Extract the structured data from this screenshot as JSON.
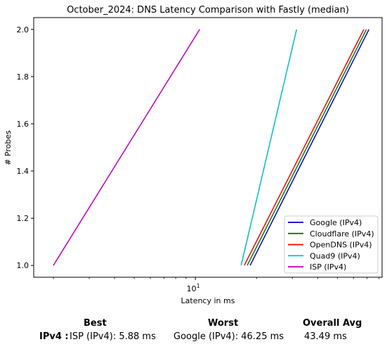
{
  "chart_data": {
    "type": "line",
    "title": "October_2024: DNS Latency Comparison with Fastly (median)",
    "xlabel": "Latency in ms",
    "ylabel": "# Probes",
    "xscale": "log",
    "xlim": [
      1.6,
      83
    ],
    "ylim": [
      0.95,
      2.05
    ],
    "x_tick_labels": [
      {
        "value": 10,
        "base": "10",
        "exp": "1"
      }
    ],
    "x_minor_ticks": [
      2,
      3,
      4,
      5,
      6,
      7,
      8,
      9,
      20,
      30,
      40,
      50,
      60,
      70,
      80
    ],
    "y_ticks": [
      1.0,
      1.2,
      1.4,
      1.6,
      1.8,
      2.0
    ],
    "y_tick_labels": [
      "1.0",
      "1.2",
      "1.4",
      "1.6",
      "1.8",
      "2.0"
    ],
    "grid": false,
    "legend_position": "lower right",
    "series": [
      {
        "name": "Google (IPv4)",
        "color": "#0000cc",
        "x": [
          18.6,
          71.5
        ],
        "y": [
          1,
          2
        ]
      },
      {
        "name": "Cloudflare (IPv4)",
        "color": "#008000",
        "x": [
          18.0,
          69.5
        ],
        "y": [
          1,
          2
        ]
      },
      {
        "name": "OpenDNS (IPv4)",
        "color": "#ff0000",
        "x": [
          17.4,
          67.5
        ],
        "y": [
          1,
          2
        ]
      },
      {
        "name": "Quad9 (IPv4)",
        "color": "#00bfbf",
        "x": [
          16.8,
          31.5
        ],
        "y": [
          1,
          2
        ]
      },
      {
        "name": "ISP (IPv4)",
        "color": "#bf00bf",
        "x": [
          2.0,
          10.5
        ],
        "y": [
          1,
          2
        ]
      }
    ]
  },
  "stats": {
    "best_header": "Best",
    "worst_header": "Worst",
    "avg_header": "Overall Avg",
    "row_label": "IPv4 :",
    "best_value": "ISP (IPv4): 5.88 ms",
    "worst_value": "Google (IPv4): 46.25 ms",
    "avg_value": "43.49 ms"
  }
}
